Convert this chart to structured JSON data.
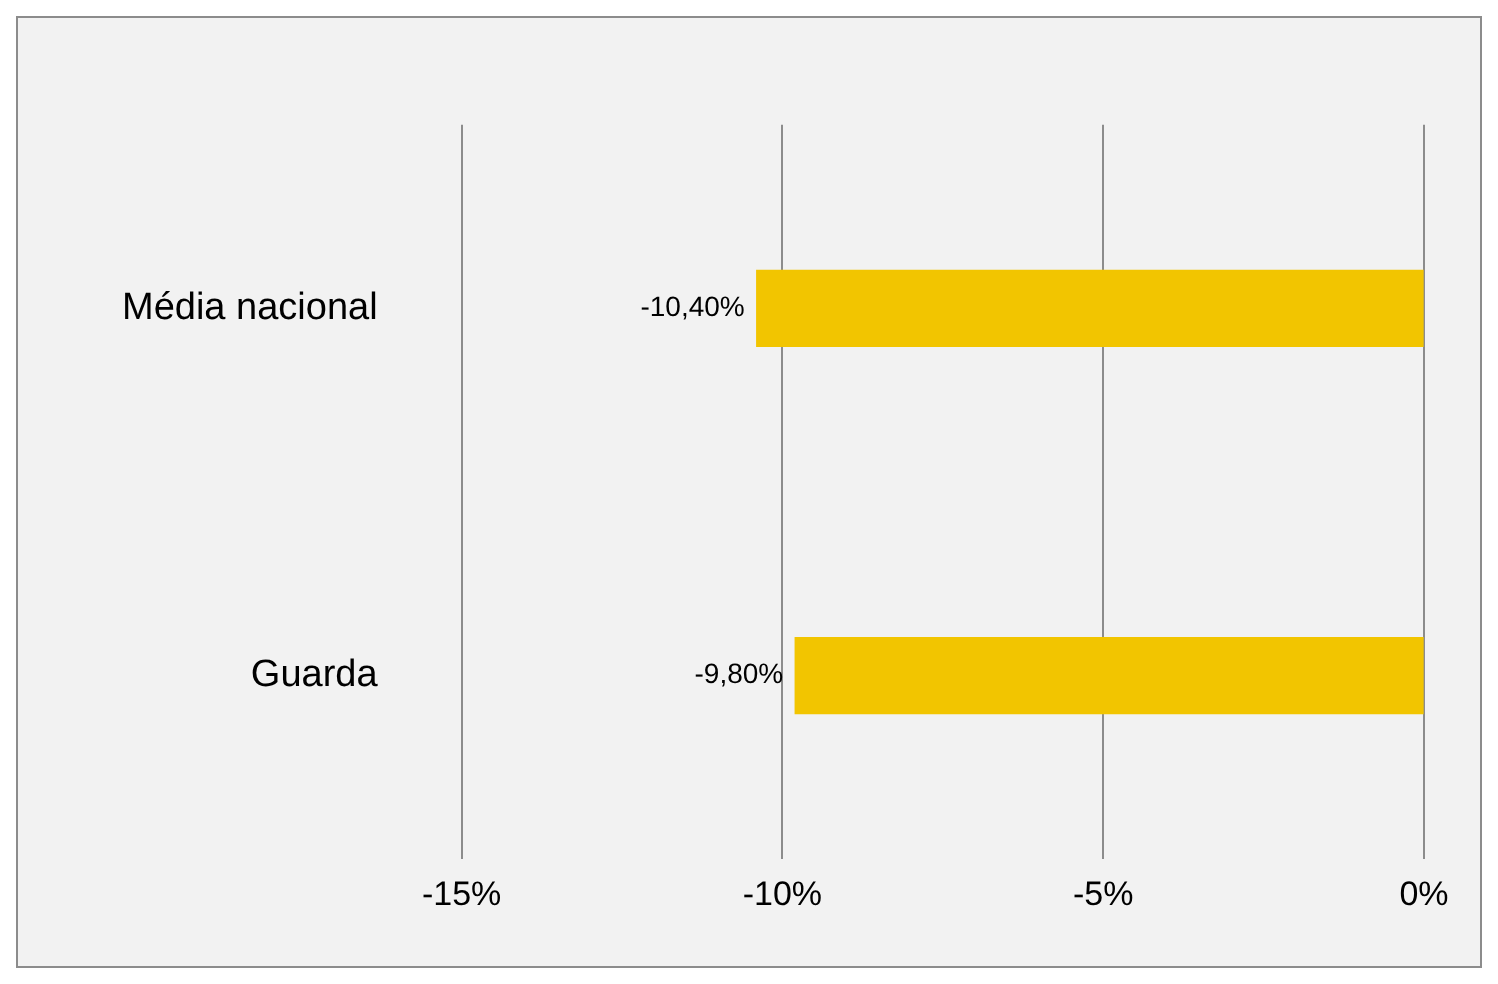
{
  "chart_data": {
    "type": "bar",
    "orientation": "horizontal",
    "categories": [
      "Média nacional",
      "Guarda"
    ],
    "values": [
      -10.4,
      -9.8
    ],
    "color": "#f2c500",
    "value_labels": [
      "-10,40%",
      "-9,80%"
    ],
    "xlim": [
      -15,
      0
    ],
    "xticks": [
      {
        "value": -15,
        "label": "-15%"
      },
      {
        "value": -10,
        "label": "-10%"
      },
      {
        "value": -5,
        "label": "-5%"
      },
      {
        "value": 0,
        "label": "0%"
      }
    ],
    "grid": "x",
    "legend": false
  }
}
